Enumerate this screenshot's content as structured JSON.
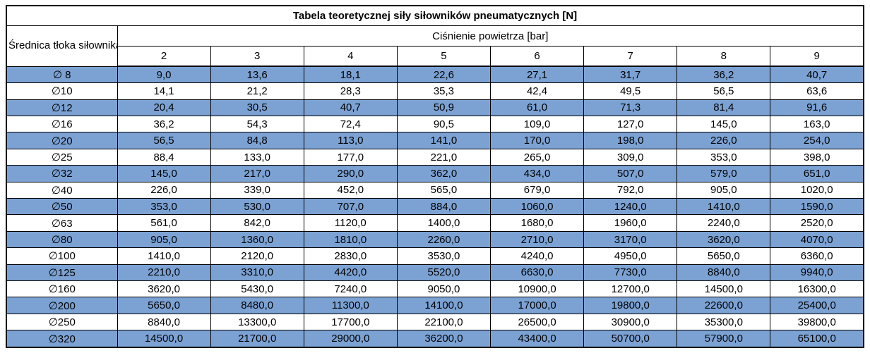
{
  "table": {
    "title": "Tabela teoretycznej siły siłowników pneumatycznych [N]",
    "diameter_header": "Średnica tłoka siłownika",
    "pressure_header": "Ciśnienie powietrza [bar]"
  },
  "colors": {
    "row_highlight": "#7CA2D4",
    "border": "#000000",
    "background": "#FFFFFF",
    "text": "#000000"
  },
  "chart_data": {
    "type": "table",
    "title": "Tabela teoretycznej siły siłowników pneumatycznych [N]",
    "row_header_label": "Średnica tłoka siłownika",
    "column_group_label": "Ciśnienie powietrza [bar]",
    "columns": [
      2,
      3,
      4,
      5,
      6,
      7,
      8,
      9
    ],
    "decimal_separator": ",",
    "rows": [
      {
        "label": "∅ 8",
        "values": [
          9.0,
          13.6,
          18.1,
          22.6,
          27.1,
          31.7,
          36.2,
          40.7
        ]
      },
      {
        "label": "∅10",
        "values": [
          14.1,
          21.2,
          28.3,
          35.3,
          42.4,
          49.5,
          56.5,
          63.6
        ]
      },
      {
        "label": "∅12",
        "values": [
          20.4,
          30.5,
          40.7,
          50.9,
          61.0,
          71.3,
          81.4,
          91.6
        ]
      },
      {
        "label": "∅16",
        "values": [
          36.2,
          54.3,
          72.4,
          90.5,
          109.0,
          127.0,
          145.0,
          163.0
        ]
      },
      {
        "label": "∅20",
        "values": [
          56.5,
          84.8,
          113.0,
          141.0,
          170.0,
          198.0,
          226.0,
          254.0
        ]
      },
      {
        "label": "∅25",
        "values": [
          88.4,
          133.0,
          177.0,
          221.0,
          265.0,
          309.0,
          353.0,
          398.0
        ]
      },
      {
        "label": "∅32",
        "values": [
          145.0,
          217.0,
          290.0,
          362.0,
          434.0,
          507.0,
          579.0,
          651.0
        ]
      },
      {
        "label": "∅40",
        "values": [
          226.0,
          339.0,
          452.0,
          565.0,
          679.0,
          792.0,
          905.0,
          1020.0
        ]
      },
      {
        "label": "∅50",
        "values": [
          353.0,
          530.0,
          707.0,
          884.0,
          1060.0,
          1240.0,
          1410.0,
          1590.0
        ]
      },
      {
        "label": "∅63",
        "values": [
          561.0,
          842.0,
          1120.0,
          1400.0,
          1680.0,
          1960.0,
          2240.0,
          2520.0
        ]
      },
      {
        "label": "∅80",
        "values": [
          905.0,
          1360.0,
          1810.0,
          2260.0,
          2710.0,
          3170.0,
          3620.0,
          4070.0
        ]
      },
      {
        "label": "∅100",
        "values": [
          1410.0,
          2120.0,
          2830.0,
          3530.0,
          4240.0,
          4950.0,
          5650.0,
          6360.0
        ]
      },
      {
        "label": "∅125",
        "values": [
          2210.0,
          3310.0,
          4420.0,
          5520.0,
          6630.0,
          7730.0,
          8840.0,
          9940.0
        ]
      },
      {
        "label": "∅160",
        "values": [
          3620.0,
          5430.0,
          7240.0,
          9050.0,
          10900.0,
          12700.0,
          14500.0,
          16300.0
        ]
      },
      {
        "label": "∅200",
        "values": [
          5650.0,
          8480.0,
          11300.0,
          14100.0,
          17000.0,
          19800.0,
          22600.0,
          25400.0
        ]
      },
      {
        "label": "∅250",
        "values": [
          8840.0,
          13300.0,
          17700.0,
          22100.0,
          26500.0,
          30900.0,
          35300.0,
          39800.0
        ]
      },
      {
        "label": "∅320",
        "values": [
          14500.0,
          21700.0,
          29000.0,
          36200.0,
          43400.0,
          50700.0,
          57900.0,
          65100.0
        ]
      }
    ],
    "highlighted_row_indices": [
      0,
      2,
      4,
      6,
      8,
      10,
      12,
      14,
      16
    ]
  }
}
